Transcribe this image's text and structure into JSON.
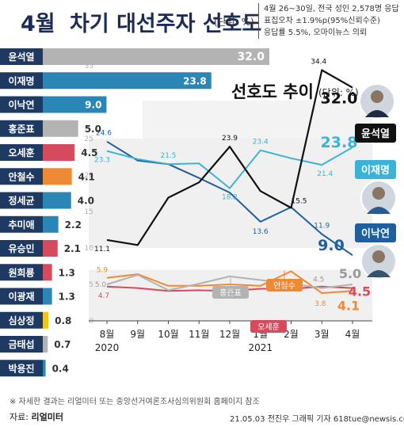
{
  "header": {
    "title_prefix": "4월",
    "title_main": "차기 대선주자 선호도",
    "title_unit": "(단위: %)",
    "info_lines": [
      "4월 26~30일, 전국 성인 2,578명 응답",
      "표집오차 ±1.9%p(95%신뢰수준)",
      "응답률 5.5%, 오마이뉴스 의뢰"
    ]
  },
  "trend_title": "선호도 추이",
  "trend_unit": "(단위: %)",
  "footer": {
    "note": "※ 자세한 결과는 리얼미터 또는 중앙선거여론조사심의위원회 홈페이지 참조",
    "source_label": "자료: ",
    "source_name": "리얼미터",
    "credit": "21.05.03  전진우 그래픽 기자  618tue@newsis.com"
  },
  "chart_data": [
    {
      "type": "bar",
      "orientation": "horizontal",
      "title": "4월 차기 대선주자 선호도",
      "categories": [
        "윤석열",
        "이재명",
        "이낙연",
        "홍준표",
        "오세훈",
        "안철수",
        "정세균",
        "추미애",
        "유승민",
        "원희룡",
        "이광재",
        "심상정",
        "금태섭",
        "박용진"
      ],
      "values": [
        32.0,
        23.8,
        9.0,
        5.0,
        4.5,
        4.1,
        4.0,
        2.2,
        2.1,
        1.3,
        1.3,
        0.8,
        0.7,
        0.4
      ],
      "value_labels": [
        "32.0",
        "23.8",
        "9.0",
        "5.0",
        "4.5",
        "4.1",
        "4.0",
        "2.2",
        "2.1",
        "1.3",
        "1.3",
        "0.8",
        "0.7",
        "0.4"
      ],
      "colors": [
        "#b3b3b3",
        "#2a86b5",
        "#2a86b5",
        "#b3b3b3",
        "#d64a5e",
        "#ef8a34",
        "#2a86b5",
        "#2a86b5",
        "#d64a5e",
        "#d64a5e",
        "#2a86b5",
        "#f0c419",
        "#b3b3b3",
        "#2a86b5"
      ]
    },
    {
      "type": "line",
      "title": "선호도 추이",
      "x": [
        "8월",
        "9월",
        "10월",
        "11월",
        "12월",
        "1월",
        "2월",
        "3월",
        "4월"
      ],
      "x_years": [
        "2020",
        "2021"
      ],
      "ylim": [
        0,
        35
      ],
      "y_ticks": [
        "35",
        "30",
        "25",
        "20",
        "15",
        "10",
        "5",
        "0"
      ],
      "series": [
        {
          "name": "윤석열",
          "color": "#111111",
          "values": [
            11.1,
            10.4,
            16.9,
            19.0,
            23.9,
            17.8,
            15.5,
            34.4,
            32.0
          ],
          "labels": {
            "0": "11.1",
            "4": "23.9",
            "6": "15.5",
            "7": "34.4",
            "8": "32.0"
          }
        },
        {
          "name": "이재명",
          "color": "#3ab3d6",
          "values": [
            23.3,
            22.2,
            21.5,
            21.6,
            18.2,
            23.4,
            22.3,
            21.4,
            23.8
          ],
          "labels": {
            "0": "23.3",
            "2": "21.5",
            "4": "18.2",
            "5": "23.4",
            "7": "21.4",
            "8": "23.8"
          }
        },
        {
          "name": "이낙연",
          "color": "#1f5f9e",
          "values": [
            24.6,
            22.0,
            21.5,
            19.6,
            17.6,
            13.6,
            15.6,
            11.9,
            9.0
          ],
          "labels": {
            "0": "24.6",
            "5": "13.6",
            "7": "11.9",
            "8": "9.0"
          }
        },
        {
          "name": "홍준표",
          "color": "#b3b3b3",
          "values": [
            5.0,
            6.3,
            4.2,
            5.1,
            6.1,
            5.6,
            5.1,
            4.5,
            5.0
          ],
          "labels": {
            "0": "5.0",
            "7": "4.5",
            "8": "5.0"
          }
        },
        {
          "name": "안철수",
          "color": "#ef8a34",
          "values": [
            5.9,
            6.4,
            4.8,
            4.8,
            5.0,
            4.8,
            6.8,
            3.8,
            4.1
          ],
          "labels": {
            "0": "5.9",
            "7": "3.8",
            "8": "4.1"
          }
        },
        {
          "name": "오세훈",
          "color": "#d64a5e",
          "values": [
            4.7,
            4.5,
            4.1,
            4.2,
            4.1,
            4.4,
            4.4,
            4.7,
            4.5
          ],
          "labels": {
            "0": "4.7",
            "8": "4.5"
          }
        }
      ]
    }
  ]
}
